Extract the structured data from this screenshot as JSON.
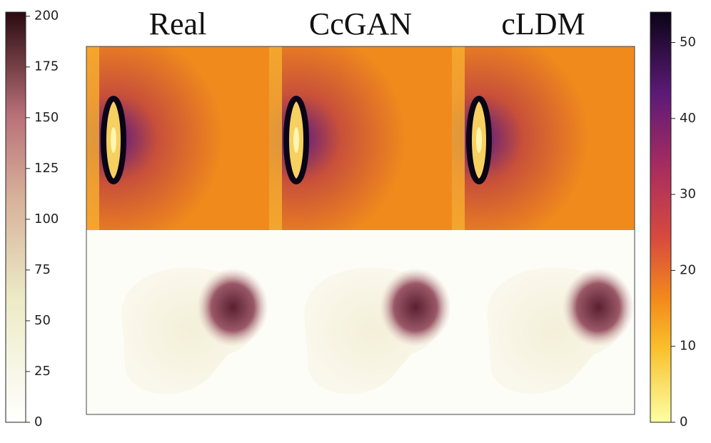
{
  "columns": [
    "Real",
    "CcGAN",
    "cLDM"
  ],
  "left_colorbar": {
    "lim": [
      0,
      202
    ],
    "ticks": [
      0,
      25,
      50,
      75,
      100,
      125,
      150,
      175,
      200
    ]
  },
  "right_colorbar": {
    "lim": [
      0,
      54
    ],
    "ticks": [
      0,
      10,
      20,
      30,
      40,
      50
    ]
  }
}
